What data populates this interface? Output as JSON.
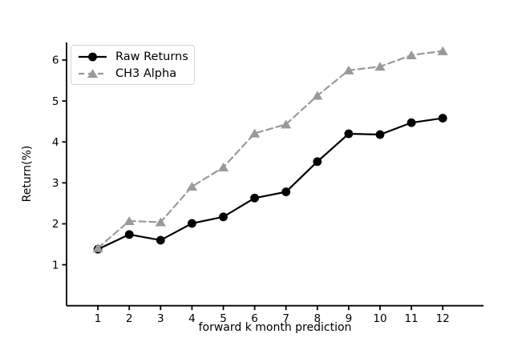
{
  "figure": {
    "background_color": "#ffffff",
    "axis_color": "#000000",
    "legend_border_color": "#d5d5d5"
  },
  "chart_data": {
    "type": "line",
    "title": "",
    "xlabel": "forward k month prediction",
    "ylabel": "Return(%)",
    "x": [
      1,
      2,
      3,
      4,
      5,
      6,
      7,
      8,
      9,
      10,
      11,
      12
    ],
    "series": [
      {
        "name": "Raw Returns",
        "color": "#000000",
        "line_style": "solid",
        "marker": "circle",
        "values": [
          1.38,
          1.74,
          1.6,
          2.01,
          2.17,
          2.63,
          2.78,
          3.52,
          4.2,
          4.18,
          4.47,
          4.58
        ]
      },
      {
        "name": "CH3 Alpha",
        "color": "#9a9a9a",
        "line_style": "dashed",
        "marker": "triangle",
        "values": [
          1.41,
          2.07,
          2.04,
          2.91,
          3.38,
          4.21,
          4.43,
          5.13,
          5.75,
          5.84,
          6.12,
          6.22
        ]
      }
    ],
    "xticks": [
      1,
      2,
      3,
      4,
      5,
      6,
      7,
      8,
      9,
      10,
      11,
      12
    ],
    "yticks": [
      1,
      2,
      3,
      4,
      5,
      6
    ],
    "xlim": [
      0,
      13.3
    ],
    "ylim": [
      0,
      6.43
    ],
    "grid": false,
    "legend_position": "upper-left",
    "spines": [
      "left",
      "bottom"
    ]
  }
}
